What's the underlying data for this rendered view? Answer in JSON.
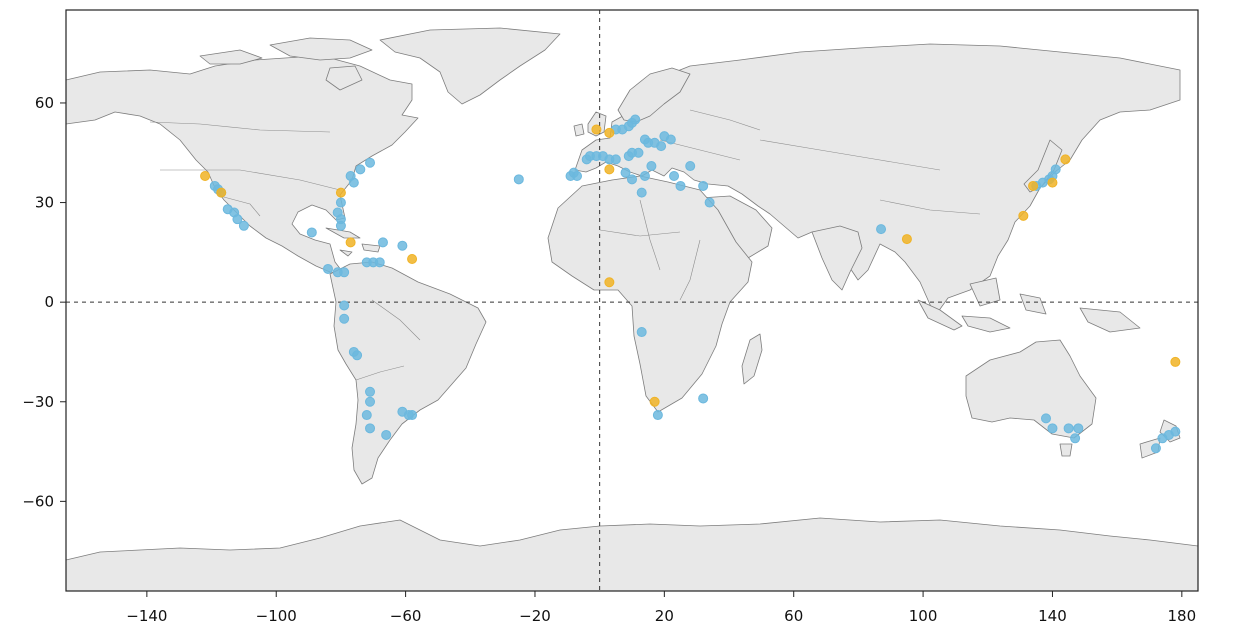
{
  "chart_data": {
    "type": "scatter",
    "title": "",
    "xlabel": "",
    "ylabel": "",
    "xlim": [
      -165,
      185
    ],
    "ylim": [
      -87,
      88
    ],
    "x_ticks": [
      -140,
      -100,
      -60,
      -20,
      20,
      60,
      100,
      140,
      180
    ],
    "y_ticks": [
      60,
      30,
      0,
      -30,
      -60
    ],
    "reference_lines": {
      "x": 0,
      "y": 0
    },
    "series": [
      {
        "color": "#6cb8de",
        "points": [
          {
            "x": -119,
            "y": 35
          },
          {
            "x": -118,
            "y": 34
          },
          {
            "x": -117,
            "y": 33
          },
          {
            "x": -115,
            "y": 28
          },
          {
            "x": -113,
            "y": 27
          },
          {
            "x": -112,
            "y": 25
          },
          {
            "x": -110,
            "y": 23
          },
          {
            "x": -89,
            "y": 21
          },
          {
            "x": -80,
            "y": 30
          },
          {
            "x": -81,
            "y": 27
          },
          {
            "x": -80,
            "y": 25
          },
          {
            "x": -80,
            "y": 23
          },
          {
            "x": -77,
            "y": 38
          },
          {
            "x": -74,
            "y": 40
          },
          {
            "x": -71,
            "y": 42
          },
          {
            "x": -76,
            "y": 36
          },
          {
            "x": -67,
            "y": 18
          },
          {
            "x": -61,
            "y": 17
          },
          {
            "x": -72,
            "y": 12
          },
          {
            "x": -70,
            "y": 12
          },
          {
            "x": -68,
            "y": 12
          },
          {
            "x": -79,
            "y": 9
          },
          {
            "x": -81,
            "y": 9
          },
          {
            "x": -84,
            "y": 10
          },
          {
            "x": -79,
            "y": -1
          },
          {
            "x": -79,
            "y": -5
          },
          {
            "x": -76,
            "y": -15
          },
          {
            "x": -75,
            "y": -16
          },
          {
            "x": -71,
            "y": -27
          },
          {
            "x": -71,
            "y": -30
          },
          {
            "x": -72,
            "y": -34
          },
          {
            "x": -71,
            "y": -38
          },
          {
            "x": -66,
            "y": -40
          },
          {
            "x": -61,
            "y": -33
          },
          {
            "x": -59,
            "y": -34
          },
          {
            "x": -58,
            "y": -34
          },
          {
            "x": -25,
            "y": 37
          },
          {
            "x": -9,
            "y": 38
          },
          {
            "x": -8,
            "y": 39
          },
          {
            "x": -7,
            "y": 38
          },
          {
            "x": -4,
            "y": 43
          },
          {
            "x": -3,
            "y": 44
          },
          {
            "x": -1,
            "y": 44
          },
          {
            "x": 1,
            "y": 44
          },
          {
            "x": 3,
            "y": 43
          },
          {
            "x": 5,
            "y": 43
          },
          {
            "x": 9,
            "y": 44
          },
          {
            "x": 10,
            "y": 45
          },
          {
            "x": 12,
            "y": 45
          },
          {
            "x": 8,
            "y": 39
          },
          {
            "x": 10,
            "y": 37
          },
          {
            "x": 14,
            "y": 38
          },
          {
            "x": 16,
            "y": 41
          },
          {
            "x": 13,
            "y": 33
          },
          {
            "x": 23,
            "y": 38
          },
          {
            "x": 25,
            "y": 35
          },
          {
            "x": 28,
            "y": 41
          },
          {
            "x": 32,
            "y": 35
          },
          {
            "x": 34,
            "y": 30
          },
          {
            "x": 5,
            "y": 52
          },
          {
            "x": 7,
            "y": 52
          },
          {
            "x": 9,
            "y": 53
          },
          {
            "x": 10,
            "y": 54
          },
          {
            "x": 11,
            "y": 55
          },
          {
            "x": 14,
            "y": 49
          },
          {
            "x": 15,
            "y": 48
          },
          {
            "x": 17,
            "y": 48
          },
          {
            "x": 19,
            "y": 47
          },
          {
            "x": 20,
            "y": 50
          },
          {
            "x": 22,
            "y": 49
          },
          {
            "x": 13,
            "y": -9
          },
          {
            "x": 18,
            "y": -34
          },
          {
            "x": 32,
            "y": -29
          },
          {
            "x": 87,
            "y": 22
          },
          {
            "x": 135,
            "y": 35
          },
          {
            "x": 137,
            "y": 36
          },
          {
            "x": 139,
            "y": 37
          },
          {
            "x": 140,
            "y": 38
          },
          {
            "x": 141,
            "y": 40
          },
          {
            "x": 138,
            "y": -35
          },
          {
            "x": 140,
            "y": -38
          },
          {
            "x": 145,
            "y": -38
          },
          {
            "x": 148,
            "y": -38
          },
          {
            "x": 147,
            "y": -41
          },
          {
            "x": 172,
            "y": -44
          },
          {
            "x": 174,
            "y": -41
          },
          {
            "x": 176,
            "y": -40
          },
          {
            "x": 178,
            "y": -39
          }
        ]
      },
      {
        "color": "#f0b326",
        "points": [
          {
            "x": -122,
            "y": 38
          },
          {
            "x": -117,
            "y": 33
          },
          {
            "x": -80,
            "y": 33
          },
          {
            "x": -77,
            "y": 18
          },
          {
            "x": -58,
            "y": 13
          },
          {
            "x": -1,
            "y": 52
          },
          {
            "x": 3,
            "y": 51
          },
          {
            "x": 3,
            "y": 40
          },
          {
            "x": 3,
            "y": 6
          },
          {
            "x": 17,
            "y": -30
          },
          {
            "x": 95,
            "y": 19
          },
          {
            "x": 131,
            "y": 26
          },
          {
            "x": 134,
            "y": 35
          },
          {
            "x": 140,
            "y": 36
          },
          {
            "x": 144,
            "y": 43
          },
          {
            "x": 178,
            "y": -18
          }
        ]
      }
    ]
  }
}
